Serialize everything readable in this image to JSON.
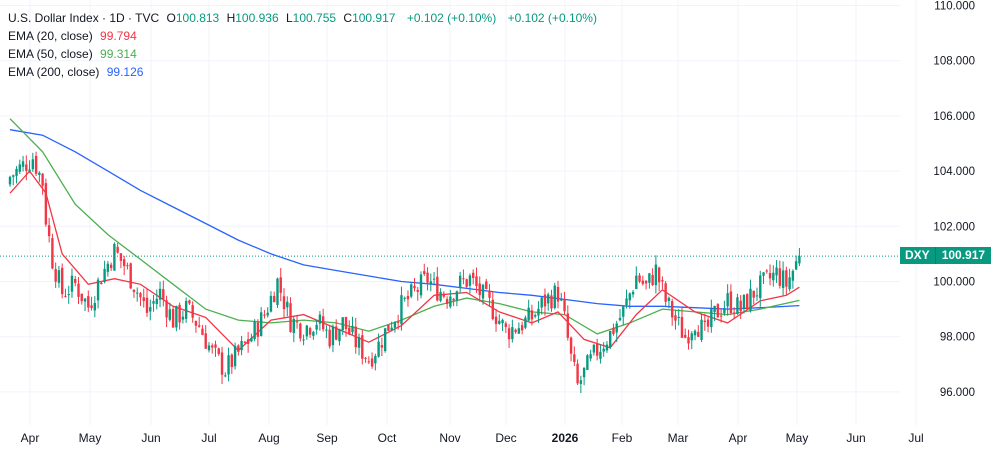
{
  "header": {
    "symbol": "U.S. Dollar Index · 1D · TVC",
    "o_label": "O",
    "o_value": "100.813",
    "h_label": "H",
    "h_value": "100.936",
    "l_label": "L",
    "l_value": "100.755",
    "c_label": "C",
    "c_value": "100.917",
    "change1": "+0.102 (+0.10%)",
    "change2": "+0.102 (+0.10%)"
  },
  "indicators": [
    {
      "label": "EMA (20, close)",
      "value": "99.794",
      "color": "#f23645"
    },
    {
      "label": "EMA (50, close)",
      "value": "99.314",
      "color": "#4caf50"
    },
    {
      "label": "EMA (200, close)",
      "value": "99.126",
      "color": "#2962ff"
    }
  ],
  "price_tag": {
    "ticker": "DXY",
    "value": "100.917"
  },
  "chart_data": {
    "type": "candlestick",
    "y_ticks": [
      "96.000",
      "98.000",
      "100.000",
      "102.000",
      "104.000",
      "106.000",
      "108.000",
      "110.000"
    ],
    "ylim": [
      94.8,
      110.2
    ],
    "x_tick_labels": [
      "Apr",
      "May",
      "Jun",
      "Jul",
      "Aug",
      "Sep",
      "Oct",
      "Nov",
      "Dec",
      "2026",
      "Feb",
      "Mar",
      "Apr",
      "May",
      "Jun",
      "Jul"
    ],
    "close_path": [
      [
        0,
        103.8
      ],
      [
        4,
        104.2
      ],
      [
        7,
        104.5
      ],
      [
        10,
        103.6
      ],
      [
        11,
        102.3
      ],
      [
        13,
        100.8
      ],
      [
        16,
        99.6
      ],
      [
        20,
        99.9
      ],
      [
        24,
        99.1
      ],
      [
        28,
        100.2
      ],
      [
        32,
        101.1
      ],
      [
        35,
        100.6
      ],
      [
        38,
        99.9
      ],
      [
        42,
        98.9
      ],
      [
        46,
        99.6
      ],
      [
        50,
        98.6
      ],
      [
        54,
        99.0
      ],
      [
        58,
        98.4
      ],
      [
        62,
        97.4
      ],
      [
        66,
        96.8
      ],
      [
        70,
        97.4
      ],
      [
        74,
        98.0
      ],
      [
        78,
        98.8
      ],
      [
        82,
        100.0
      ],
      [
        86,
        98.6
      ],
      [
        90,
        98.3
      ],
      [
        94,
        98.6
      ],
      [
        98,
        98.0
      ],
      [
        102,
        98.5
      ],
      [
        106,
        97.8
      ],
      [
        110,
        97.2
      ],
      [
        113,
        97.7
      ],
      [
        116,
        98.4
      ],
      [
        120,
        99.1
      ],
      [
        124,
        99.6
      ],
      [
        128,
        100.1
      ],
      [
        130,
        99.8
      ],
      [
        134,
        99.5
      ],
      [
        138,
        99.9
      ],
      [
        141,
        100.1
      ],
      [
        144,
        99.6
      ],
      [
        148,
        99.0
      ],
      [
        152,
        98.2
      ],
      [
        156,
        98.4
      ],
      [
        160,
        98.7
      ],
      [
        164,
        99.3
      ],
      [
        168,
        99.6
      ],
      [
        170,
        98.6
      ],
      [
        172,
        97.2
      ],
      [
        174,
        96.2
      ],
      [
        177,
        96.9
      ],
      [
        180,
        97.5
      ],
      [
        184,
        98.1
      ],
      [
        188,
        98.9
      ],
      [
        192,
        100.2
      ],
      [
        195,
        99.8
      ],
      [
        198,
        100.4
      ],
      [
        201,
        99.3
      ],
      [
        204,
        98.6
      ],
      [
        207,
        98.0
      ],
      [
        210,
        98.6
      ],
      [
        213,
        98.1
      ],
      [
        216,
        98.8
      ],
      [
        220,
        99.3
      ],
      [
        224,
        99.0
      ],
      [
        228,
        99.6
      ],
      [
        232,
        100.0
      ],
      [
        235,
        100.3
      ],
      [
        238,
        99.9
      ],
      [
        240,
        100.4
      ],
      [
        242,
        100.9
      ]
    ],
    "ema20": [
      [
        0,
        103.2
      ],
      [
        6,
        104.0
      ],
      [
        11,
        103.2
      ],
      [
        16,
        101.0
      ],
      [
        24,
        99.9
      ],
      [
        32,
        100.1
      ],
      [
        40,
        99.9
      ],
      [
        50,
        99.1
      ],
      [
        60,
        98.7
      ],
      [
        70,
        97.5
      ],
      [
        80,
        98.6
      ],
      [
        90,
        98.8
      ],
      [
        100,
        98.3
      ],
      [
        110,
        97.8
      ],
      [
        120,
        98.4
      ],
      [
        130,
        99.5
      ],
      [
        140,
        99.6
      ],
      [
        150,
        98.9
      ],
      [
        160,
        98.5
      ],
      [
        168,
        98.9
      ],
      [
        176,
        97.9
      ],
      [
        184,
        97.6
      ],
      [
        192,
        98.8
      ],
      [
        200,
        99.7
      ],
      [
        210,
        98.9
      ],
      [
        220,
        98.5
      ],
      [
        230,
        99.3
      ],
      [
        238,
        99.5
      ],
      [
        242,
        99.794
      ]
    ],
    "ema50": [
      [
        0,
        105.9
      ],
      [
        10,
        104.7
      ],
      [
        20,
        102.8
      ],
      [
        30,
        101.7
      ],
      [
        40,
        100.8
      ],
      [
        50,
        99.9
      ],
      [
        60,
        99.0
      ],
      [
        70,
        98.6
      ],
      [
        80,
        98.5
      ],
      [
        90,
        98.6
      ],
      [
        100,
        98.5
      ],
      [
        110,
        98.2
      ],
      [
        120,
        98.6
      ],
      [
        130,
        99.1
      ],
      [
        140,
        99.4
      ],
      [
        150,
        99.2
      ],
      [
        160,
        98.9
      ],
      [
        170,
        98.8
      ],
      [
        180,
        98.1
      ],
      [
        190,
        98.5
      ],
      [
        200,
        99.0
      ],
      [
        210,
        98.9
      ],
      [
        220,
        98.8
      ],
      [
        230,
        99.0
      ],
      [
        242,
        99.314
      ]
    ],
    "ema200": [
      [
        0,
        105.5
      ],
      [
        10,
        105.3
      ],
      [
        20,
        104.7
      ],
      [
        30,
        104.0
      ],
      [
        40,
        103.3
      ],
      [
        50,
        102.7
      ],
      [
        60,
        102.1
      ],
      [
        70,
        101.5
      ],
      [
        80,
        101.0
      ],
      [
        90,
        100.6
      ],
      [
        100,
        100.4
      ],
      [
        110,
        100.2
      ],
      [
        120,
        100.0
      ],
      [
        130,
        99.9
      ],
      [
        140,
        99.75
      ],
      [
        150,
        99.6
      ],
      [
        160,
        99.5
      ],
      [
        170,
        99.35
      ],
      [
        180,
        99.2
      ],
      [
        190,
        99.1
      ],
      [
        200,
        99.1
      ],
      [
        210,
        99.05
      ],
      [
        220,
        99.0
      ],
      [
        230,
        99.05
      ],
      [
        242,
        99.126
      ]
    ]
  },
  "colors": {
    "up": "#089981",
    "down": "#f23645",
    "ema20": "#f23645",
    "ema50": "#4caf50",
    "ema200": "#2962ff",
    "grid": "#f0f3fa",
    "axis_text": "#131722",
    "price_line": "#089981"
  }
}
